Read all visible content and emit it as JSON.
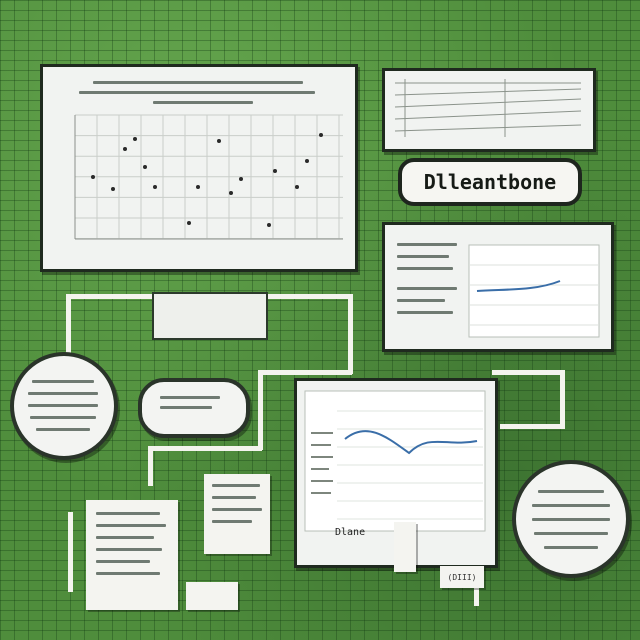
{
  "poster": {
    "heading_blur": "",
    "title": "Dlleantbone",
    "caption": "Dlane",
    "tag": "(DIII)"
  },
  "colors": {
    "background": "#4f8d3c",
    "panel": "#f1f3f1",
    "frame": "#1f2a1f",
    "line_series": "#3a6ea8"
  },
  "panels": {
    "scatter": {
      "type": "scatter"
    },
    "table_top_right": {
      "type": "document"
    },
    "mini_chart": {
      "type": "line"
    },
    "main_chart": {
      "type": "line"
    }
  }
}
